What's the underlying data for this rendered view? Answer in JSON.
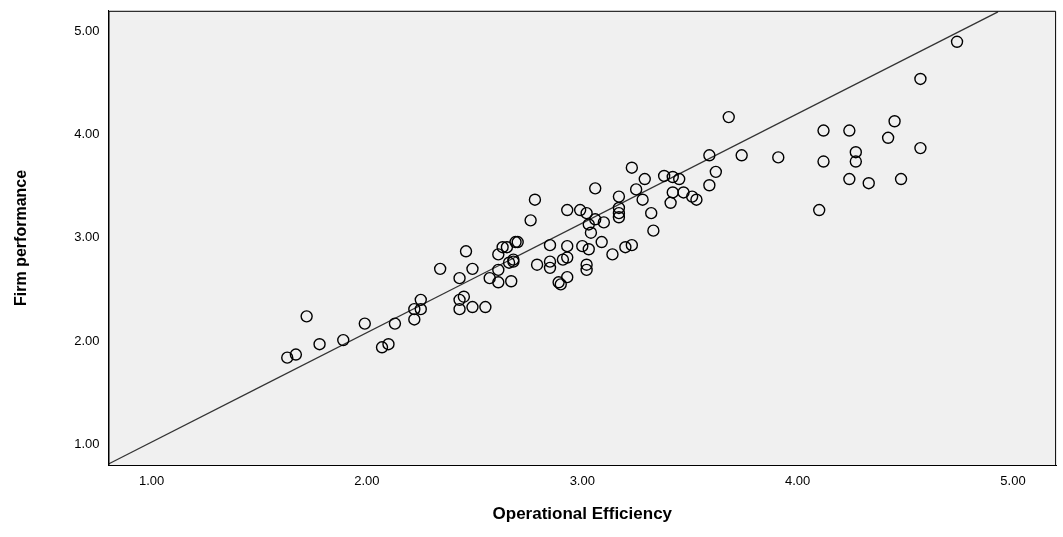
{
  "chart_data": {
    "type": "scatter",
    "xlabel": "Operational Efficiency",
    "ylabel": "Firm performance",
    "xlim": [
      0.8,
      5.2
    ],
    "ylim": [
      0.8,
      5.2
    ],
    "xticks": [
      {
        "value": 1,
        "label": "1.00"
      },
      {
        "value": 2,
        "label": "2.00"
      },
      {
        "value": 3,
        "label": "3.00"
      },
      {
        "value": 4,
        "label": "4.00"
      },
      {
        "value": 5,
        "label": "5.00"
      }
    ],
    "yticks": [
      {
        "value": 1,
        "label": "1.00"
      },
      {
        "value": 2,
        "label": "2.00"
      },
      {
        "value": 3,
        "label": "3.00"
      },
      {
        "value": 4,
        "label": "4.00"
      },
      {
        "value": 5,
        "label": "5.00"
      }
    ],
    "grid": false,
    "legend": false,
    "marker": "circle",
    "series": [
      {
        "color": "#000000",
        "x": [
          1.63,
          1.67,
          1.72,
          1.78,
          1.89,
          1.99,
          2.07,
          2.1,
          2.13,
          2.22,
          2.22,
          2.25,
          2.25,
          2.34,
          2.43,
          2.43,
          2.45,
          2.49,
          2.55,
          2.43,
          2.49,
          2.46,
          2.57,
          2.61,
          2.67,
          2.61,
          2.61,
          2.65,
          2.69,
          2.66,
          2.68,
          2.78,
          2.76,
          3.06,
          3.23,
          3.29,
          3.38,
          3.42,
          3.45,
          2.93,
          2.99,
          3.02,
          3.17,
          3.17,
          3.17,
          3.17,
          3.25,
          3.28,
          3.32,
          3.42,
          3.47,
          3.41,
          3.33,
          3.14,
          3.2,
          3.23,
          3.02,
          3.02,
          2.85,
          2.93,
          3.0,
          3.03,
          3.09,
          3.04,
          3.06,
          3.1,
          3.03,
          2.93,
          2.85,
          2.85,
          2.79,
          2.91,
          2.93,
          2.89,
          2.9,
          2.7,
          2.63,
          2.68,
          3.68,
          3.59,
          3.74,
          3.62,
          3.59,
          3.91,
          4.12,
          4.12,
          4.1,
          3.51,
          3.53,
          4.74,
          4.57,
          4.45,
          4.42,
          4.57,
          4.24,
          4.27,
          4.27,
          4.24,
          4.33,
          4.48
        ],
        "values": [
          1.84,
          1.87,
          2.24,
          1.97,
          2.01,
          2.17,
          1.94,
          1.97,
          2.17,
          2.21,
          2.31,
          2.31,
          2.4,
          2.7,
          2.31,
          2.4,
          2.43,
          2.33,
          2.33,
          2.61,
          2.7,
          2.87,
          2.61,
          2.57,
          2.58,
          2.69,
          2.84,
          2.91,
          2.96,
          2.76,
          2.77,
          3.37,
          3.17,
          3.48,
          3.68,
          3.57,
          3.6,
          3.59,
          3.57,
          3.27,
          3.27,
          3.24,
          3.4,
          3.29,
          3.24,
          3.2,
          3.47,
          3.37,
          3.24,
          3.44,
          3.44,
          3.34,
          3.07,
          2.84,
          2.91,
          2.93,
          2.74,
          2.69,
          2.93,
          2.92,
          2.92,
          2.89,
          2.96,
          3.05,
          3.18,
          3.15,
          3.13,
          2.81,
          2.77,
          2.71,
          2.74,
          2.79,
          2.62,
          2.57,
          2.55,
          2.96,
          2.91,
          2.79,
          4.17,
          3.8,
          3.8,
          3.64,
          3.51,
          3.78,
          4.04,
          3.74,
          3.27,
          3.4,
          3.37,
          4.9,
          4.54,
          4.13,
          3.97,
          3.87,
          4.04,
          3.83,
          3.74,
          3.57,
          3.53,
          3.57
        ]
      },
      {
        "type": "line",
        "color": "#333333",
        "line_style": "solid",
        "marker": "none",
        "x": [
          0.8,
          4.93
        ],
        "values": [
          0.81,
          5.19
        ]
      }
    ]
  }
}
